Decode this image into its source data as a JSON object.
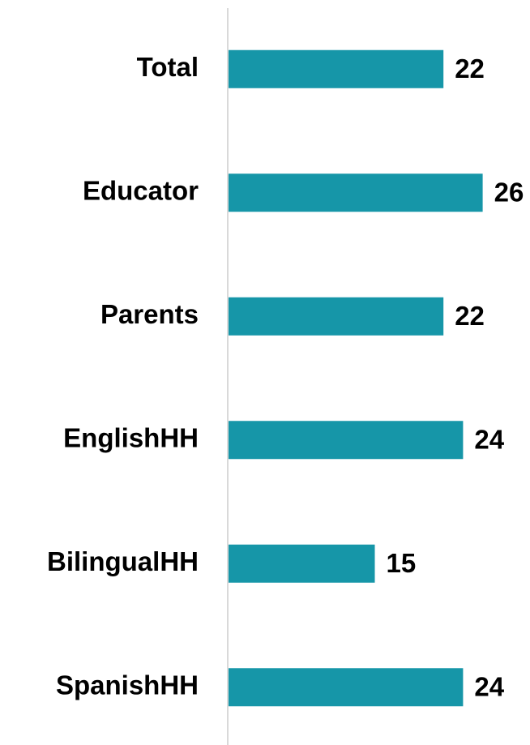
{
  "chart_data": {
    "type": "bar",
    "orientation": "horizontal",
    "categories": [
      "Total",
      "Educator",
      "Parents",
      "EnglishHH",
      "BilingualHH",
      "SpanishHH"
    ],
    "values": [
      22,
      26,
      22,
      24,
      15,
      24
    ],
    "color": "#1696a8",
    "xlim": [
      0,
      30
    ]
  }
}
